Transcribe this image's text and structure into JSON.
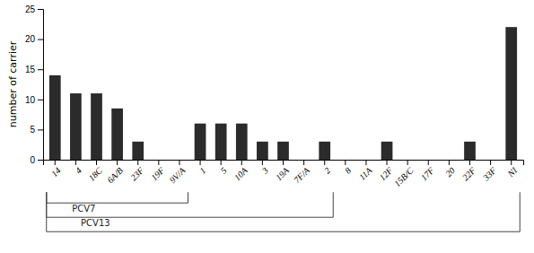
{
  "chart_data": {
    "type": "bar",
    "categories": [
      "14",
      "4",
      "18C",
      "6A/B",
      "23F",
      "19F",
      "9V/A",
      "1",
      "5",
      "10A",
      "3",
      "19A",
      "7F/A",
      "2",
      "8",
      "11A",
      "12F",
      "15B/C",
      "17F",
      "20",
      "22F",
      "33F",
      "NI"
    ],
    "values": [
      14,
      11,
      11,
      8.5,
      3,
      0,
      0,
      6,
      6,
      6,
      3,
      3,
      0,
      3,
      0,
      0,
      3,
      0,
      0,
      0,
      3,
      0,
      22
    ],
    "color": "#2b2b2b",
    "ylabel": "number of carrier",
    "ylim": [
      0,
      25
    ],
    "yticks": [
      0,
      5,
      10,
      15,
      20,
      25
    ],
    "grid": false,
    "annotations": [
      {
        "text": "PCV7",
        "from": "14",
        "to": "9V/A"
      },
      {
        "text": "PCV13",
        "from": "14",
        "to": "2"
      },
      {
        "from": "14",
        "to": "NI"
      }
    ]
  }
}
